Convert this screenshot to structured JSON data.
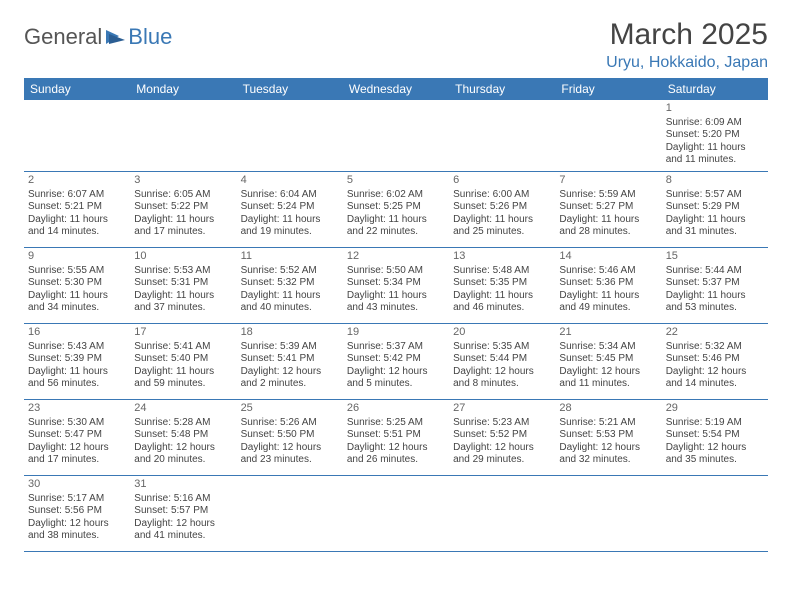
{
  "logo": {
    "part1": "General",
    "part2": "Blue"
  },
  "title": "March 2025",
  "location": "Uryu, Hokkaido, Japan",
  "colors": {
    "header_bg": "#3a78b5",
    "header_text": "#ffffff",
    "accent": "#3a78b5",
    "body_text": "#444444",
    "page_bg": "#ffffff"
  },
  "dayHeaders": [
    "Sunday",
    "Monday",
    "Tuesday",
    "Wednesday",
    "Thursday",
    "Friday",
    "Saturday"
  ],
  "weeks": [
    [
      null,
      null,
      null,
      null,
      null,
      null,
      {
        "n": "1",
        "sr": "Sunrise: 6:09 AM",
        "ss": "Sunset: 5:20 PM",
        "dl": "Daylight: 11 hours and 11 minutes."
      }
    ],
    [
      {
        "n": "2",
        "sr": "Sunrise: 6:07 AM",
        "ss": "Sunset: 5:21 PM",
        "dl": "Daylight: 11 hours and 14 minutes."
      },
      {
        "n": "3",
        "sr": "Sunrise: 6:05 AM",
        "ss": "Sunset: 5:22 PM",
        "dl": "Daylight: 11 hours and 17 minutes."
      },
      {
        "n": "4",
        "sr": "Sunrise: 6:04 AM",
        "ss": "Sunset: 5:24 PM",
        "dl": "Daylight: 11 hours and 19 minutes."
      },
      {
        "n": "5",
        "sr": "Sunrise: 6:02 AM",
        "ss": "Sunset: 5:25 PM",
        "dl": "Daylight: 11 hours and 22 minutes."
      },
      {
        "n": "6",
        "sr": "Sunrise: 6:00 AM",
        "ss": "Sunset: 5:26 PM",
        "dl": "Daylight: 11 hours and 25 minutes."
      },
      {
        "n": "7",
        "sr": "Sunrise: 5:59 AM",
        "ss": "Sunset: 5:27 PM",
        "dl": "Daylight: 11 hours and 28 minutes."
      },
      {
        "n": "8",
        "sr": "Sunrise: 5:57 AM",
        "ss": "Sunset: 5:29 PM",
        "dl": "Daylight: 11 hours and 31 minutes."
      }
    ],
    [
      {
        "n": "9",
        "sr": "Sunrise: 5:55 AM",
        "ss": "Sunset: 5:30 PM",
        "dl": "Daylight: 11 hours and 34 minutes."
      },
      {
        "n": "10",
        "sr": "Sunrise: 5:53 AM",
        "ss": "Sunset: 5:31 PM",
        "dl": "Daylight: 11 hours and 37 minutes."
      },
      {
        "n": "11",
        "sr": "Sunrise: 5:52 AM",
        "ss": "Sunset: 5:32 PM",
        "dl": "Daylight: 11 hours and 40 minutes."
      },
      {
        "n": "12",
        "sr": "Sunrise: 5:50 AM",
        "ss": "Sunset: 5:34 PM",
        "dl": "Daylight: 11 hours and 43 minutes."
      },
      {
        "n": "13",
        "sr": "Sunrise: 5:48 AM",
        "ss": "Sunset: 5:35 PM",
        "dl": "Daylight: 11 hours and 46 minutes."
      },
      {
        "n": "14",
        "sr": "Sunrise: 5:46 AM",
        "ss": "Sunset: 5:36 PM",
        "dl": "Daylight: 11 hours and 49 minutes."
      },
      {
        "n": "15",
        "sr": "Sunrise: 5:44 AM",
        "ss": "Sunset: 5:37 PM",
        "dl": "Daylight: 11 hours and 53 minutes."
      }
    ],
    [
      {
        "n": "16",
        "sr": "Sunrise: 5:43 AM",
        "ss": "Sunset: 5:39 PM",
        "dl": "Daylight: 11 hours and 56 minutes."
      },
      {
        "n": "17",
        "sr": "Sunrise: 5:41 AM",
        "ss": "Sunset: 5:40 PM",
        "dl": "Daylight: 11 hours and 59 minutes."
      },
      {
        "n": "18",
        "sr": "Sunrise: 5:39 AM",
        "ss": "Sunset: 5:41 PM",
        "dl": "Daylight: 12 hours and 2 minutes."
      },
      {
        "n": "19",
        "sr": "Sunrise: 5:37 AM",
        "ss": "Sunset: 5:42 PM",
        "dl": "Daylight: 12 hours and 5 minutes."
      },
      {
        "n": "20",
        "sr": "Sunrise: 5:35 AM",
        "ss": "Sunset: 5:44 PM",
        "dl": "Daylight: 12 hours and 8 minutes."
      },
      {
        "n": "21",
        "sr": "Sunrise: 5:34 AM",
        "ss": "Sunset: 5:45 PM",
        "dl": "Daylight: 12 hours and 11 minutes."
      },
      {
        "n": "22",
        "sr": "Sunrise: 5:32 AM",
        "ss": "Sunset: 5:46 PM",
        "dl": "Daylight: 12 hours and 14 minutes."
      }
    ],
    [
      {
        "n": "23",
        "sr": "Sunrise: 5:30 AM",
        "ss": "Sunset: 5:47 PM",
        "dl": "Daylight: 12 hours and 17 minutes."
      },
      {
        "n": "24",
        "sr": "Sunrise: 5:28 AM",
        "ss": "Sunset: 5:48 PM",
        "dl": "Daylight: 12 hours and 20 minutes."
      },
      {
        "n": "25",
        "sr": "Sunrise: 5:26 AM",
        "ss": "Sunset: 5:50 PM",
        "dl": "Daylight: 12 hours and 23 minutes."
      },
      {
        "n": "26",
        "sr": "Sunrise: 5:25 AM",
        "ss": "Sunset: 5:51 PM",
        "dl": "Daylight: 12 hours and 26 minutes."
      },
      {
        "n": "27",
        "sr": "Sunrise: 5:23 AM",
        "ss": "Sunset: 5:52 PM",
        "dl": "Daylight: 12 hours and 29 minutes."
      },
      {
        "n": "28",
        "sr": "Sunrise: 5:21 AM",
        "ss": "Sunset: 5:53 PM",
        "dl": "Daylight: 12 hours and 32 minutes."
      },
      {
        "n": "29",
        "sr": "Sunrise: 5:19 AM",
        "ss": "Sunset: 5:54 PM",
        "dl": "Daylight: 12 hours and 35 minutes."
      }
    ],
    [
      {
        "n": "30",
        "sr": "Sunrise: 5:17 AM",
        "ss": "Sunset: 5:56 PM",
        "dl": "Daylight: 12 hours and 38 minutes."
      },
      {
        "n": "31",
        "sr": "Sunrise: 5:16 AM",
        "ss": "Sunset: 5:57 PM",
        "dl": "Daylight: 12 hours and 41 minutes."
      },
      null,
      null,
      null,
      null,
      null
    ]
  ]
}
